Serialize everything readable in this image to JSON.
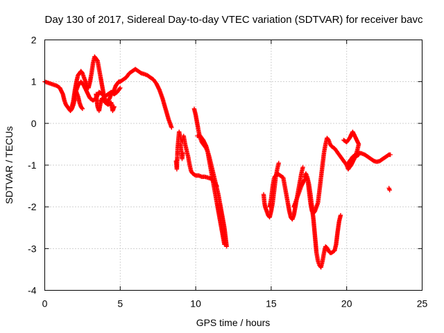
{
  "chart_data": {
    "type": "scatter",
    "title": "Day 130 of 2017, Sidereal Day-to-day VTEC variation (SDTVAR) for receiver bavc",
    "xlabel": "GPS time / hours",
    "ylabel": "SDTVAR / TECUs",
    "xlim": [
      0,
      25
    ],
    "ylim": [
      -4,
      2
    ],
    "x_ticks": [
      "0",
      "5",
      "10",
      "15",
      "20",
      "25"
    ],
    "y_ticks": [
      "-4",
      "-3",
      "-2",
      "-1",
      "0",
      "1",
      "2"
    ],
    "grid": true,
    "marker": "+",
    "color": "#ff0000",
    "segments": [
      [
        [
          0.0,
          1.0
        ],
        [
          0.4,
          0.95
        ],
        [
          0.8,
          0.9
        ],
        [
          1.0,
          0.85
        ],
        [
          1.2,
          0.7
        ],
        [
          1.3,
          0.55
        ],
        [
          1.4,
          0.45
        ],
        [
          1.5,
          0.4
        ],
        [
          1.6,
          0.35
        ],
        [
          1.7,
          0.3
        ],
        [
          1.8,
          0.35
        ],
        [
          1.9,
          0.45
        ],
        [
          2.0,
          0.6
        ],
        [
          2.1,
          0.75
        ],
        [
          2.2,
          0.65
        ],
        [
          2.3,
          0.5
        ],
        [
          2.4,
          0.4
        ],
        [
          2.5,
          0.35
        ]
      ],
      [
        [
          1.8,
          0.4
        ],
        [
          1.9,
          0.55
        ],
        [
          2.0,
          0.8
        ],
        [
          2.1,
          1.0
        ],
        [
          2.2,
          1.15
        ],
        [
          2.3,
          1.2
        ],
        [
          2.4,
          1.25
        ],
        [
          2.5,
          1.2
        ],
        [
          2.6,
          1.1
        ],
        [
          2.7,
          1.0
        ],
        [
          2.8,
          0.9
        ],
        [
          2.9,
          0.85
        ],
        [
          3.0,
          1.0
        ],
        [
          3.1,
          1.2
        ],
        [
          3.2,
          1.45
        ],
        [
          3.3,
          1.6
        ],
        [
          3.4,
          1.55
        ],
        [
          3.5,
          1.5
        ],
        [
          3.6,
          1.3
        ],
        [
          3.7,
          1.1
        ],
        [
          3.8,
          0.9
        ],
        [
          3.9,
          0.7
        ],
        [
          4.0,
          0.55
        ],
        [
          4.1,
          0.5
        ],
        [
          4.2,
          0.55
        ],
        [
          4.3,
          0.6
        ],
        [
          4.4,
          0.7
        ],
        [
          4.5,
          0.75
        ],
        [
          4.6,
          0.8
        ],
        [
          4.7,
          0.9
        ],
        [
          4.8,
          0.95
        ],
        [
          4.9,
          1.0
        ],
        [
          5.0,
          1.0
        ],
        [
          5.2,
          1.05
        ],
        [
          5.4,
          1.1
        ],
        [
          5.6,
          1.2
        ],
        [
          5.8,
          1.25
        ],
        [
          6.0,
          1.3
        ],
        [
          6.2,
          1.25
        ],
        [
          6.4,
          1.2
        ],
        [
          6.6,
          1.18
        ],
        [
          6.8,
          1.15
        ],
        [
          7.0,
          1.1
        ],
        [
          7.2,
          1.05
        ],
        [
          7.4,
          0.95
        ],
        [
          7.6,
          0.8
        ],
        [
          7.8,
          0.6
        ],
        [
          8.0,
          0.35
        ],
        [
          8.2,
          0.1
        ],
        [
          8.4,
          -0.1
        ]
      ],
      [
        [
          2.0,
          0.7
        ],
        [
          2.2,
          0.9
        ],
        [
          2.4,
          1.0
        ],
        [
          2.6,
          0.9
        ],
        [
          2.8,
          0.75
        ],
        [
          3.0,
          0.6
        ],
        [
          3.2,
          0.55
        ],
        [
          3.4,
          0.6
        ],
        [
          3.6,
          0.75
        ],
        [
          3.8,
          0.7
        ],
        [
          4.0,
          0.65
        ],
        [
          4.2,
          0.7
        ],
        [
          4.4,
          0.75
        ],
        [
          4.6,
          0.7
        ],
        [
          4.8,
          0.75
        ],
        [
          5.0,
          0.85
        ]
      ],
      [
        [
          3.4,
          0.7
        ],
        [
          3.5,
          0.4
        ],
        [
          3.6,
          0.3
        ],
        [
          3.7,
          0.5
        ],
        [
          3.8,
          0.6
        ],
        [
          4.0,
          0.5
        ],
        [
          4.2,
          0.45
        ],
        [
          4.4,
          0.5
        ],
        [
          4.5,
          0.3
        ],
        [
          4.6,
          0.4
        ]
      ],
      [
        [
          8.7,
          -0.9
        ],
        [
          8.75,
          -1.1
        ],
        [
          8.8,
          -0.6
        ],
        [
          8.85,
          -0.4
        ],
        [
          8.9,
          -0.2
        ],
        [
          9.0,
          -0.35
        ],
        [
          9.1,
          -0.45
        ],
        [
          9.2,
          -0.3
        ],
        [
          9.3,
          -0.5
        ],
        [
          9.4,
          -0.65
        ],
        [
          9.5,
          -0.8
        ],
        [
          9.6,
          -1.0
        ],
        [
          9.7,
          -1.15
        ],
        [
          9.8,
          -1.2
        ],
        [
          10.0,
          -1.25
        ],
        [
          10.2,
          -1.25
        ],
        [
          10.4,
          -1.28
        ],
        [
          10.6,
          -1.28
        ],
        [
          10.8,
          -1.3
        ],
        [
          11.0,
          -1.32
        ],
        [
          11.2,
          -1.4
        ],
        [
          11.4,
          -1.5
        ]
      ],
      [
        [
          9.0,
          -0.5
        ],
        [
          9.05,
          -0.7
        ],
        [
          9.1,
          -0.85
        ],
        [
          9.15,
          -0.7
        ]
      ],
      [
        [
          9.9,
          0.35
        ],
        [
          10.0,
          0.2
        ],
        [
          10.1,
          0.0
        ],
        [
          10.2,
          -0.2
        ],
        [
          10.3,
          -0.35
        ],
        [
          10.4,
          -0.45
        ],
        [
          10.5,
          -0.5
        ],
        [
          10.6,
          -0.55
        ],
        [
          10.7,
          -0.6
        ],
        [
          10.8,
          -0.7
        ],
        [
          10.9,
          -0.9
        ],
        [
          11.0,
          -1.1
        ],
        [
          11.1,
          -1.3
        ],
        [
          11.2,
          -1.5
        ],
        [
          11.3,
          -1.7
        ],
        [
          11.4,
          -1.9
        ],
        [
          11.5,
          -2.1
        ],
        [
          11.6,
          -2.3
        ],
        [
          11.7,
          -2.5
        ],
        [
          11.8,
          -2.7
        ],
        [
          11.9,
          -2.9
        ]
      ],
      [
        [
          10.1,
          -0.3
        ],
        [
          10.3,
          -0.3
        ],
        [
          10.5,
          -0.4
        ],
        [
          10.7,
          -0.55
        ],
        [
          10.9,
          -0.8
        ],
        [
          11.1,
          -1.1
        ],
        [
          11.3,
          -1.4
        ],
        [
          11.5,
          -1.7
        ],
        [
          11.7,
          -2.1
        ],
        [
          11.9,
          -2.5
        ],
        [
          12.0,
          -2.8
        ],
        [
          12.05,
          -2.95
        ]
      ],
      [
        [
          14.5,
          -1.7
        ],
        [
          14.55,
          -1.9
        ],
        [
          14.6,
          -2.0
        ],
        [
          14.7,
          -2.1
        ],
        [
          14.8,
          -2.2
        ],
        [
          14.9,
          -2.25
        ],
        [
          15.0,
          -2.1
        ],
        [
          15.1,
          -1.9
        ],
        [
          15.2,
          -1.6
        ],
        [
          15.3,
          -1.3
        ],
        [
          15.4,
          -1.1
        ],
        [
          15.5,
          -0.95
        ]
      ],
      [
        [
          14.9,
          -2.0
        ],
        [
          15.0,
          -1.8
        ],
        [
          15.1,
          -1.5
        ],
        [
          15.2,
          -1.3
        ],
        [
          15.4,
          -1.2
        ],
        [
          15.6,
          -1.25
        ],
        [
          15.8,
          -1.3
        ],
        [
          15.9,
          -1.5
        ],
        [
          16.0,
          -1.7
        ],
        [
          16.1,
          -1.9
        ],
        [
          16.2,
          -2.1
        ],
        [
          16.3,
          -2.25
        ],
        [
          16.4,
          -2.3
        ],
        [
          16.5,
          -2.2
        ],
        [
          16.6,
          -2.0
        ],
        [
          16.7,
          -1.8
        ],
        [
          16.8,
          -1.6
        ],
        [
          16.9,
          -1.4
        ],
        [
          17.0,
          -1.2
        ],
        [
          17.1,
          -1.05
        ]
      ],
      [
        [
          16.5,
          -2.0
        ],
        [
          16.6,
          -1.9
        ],
        [
          16.8,
          -1.7
        ],
        [
          17.0,
          -1.5
        ],
        [
          17.2,
          -1.35
        ],
        [
          17.4,
          -1.3
        ],
        [
          17.5,
          -1.45
        ],
        [
          17.6,
          -1.7
        ],
        [
          17.7,
          -2.0
        ],
        [
          17.8,
          -2.3
        ],
        [
          17.9,
          -2.7
        ],
        [
          18.0,
          -3.1
        ],
        [
          18.1,
          -3.3
        ],
        [
          18.2,
          -3.4
        ],
        [
          18.3,
          -3.45
        ],
        [
          18.4,
          -3.3
        ],
        [
          18.5,
          -3.1
        ],
        [
          18.6,
          -2.95
        ],
        [
          18.7,
          -2.98
        ],
        [
          18.8,
          -3.05
        ],
        [
          18.9,
          -3.1
        ],
        [
          19.0,
          -3.1
        ],
        [
          19.2,
          -3.05
        ],
        [
          19.3,
          -2.9
        ],
        [
          19.4,
          -2.6
        ],
        [
          19.5,
          -2.35
        ],
        [
          19.6,
          -2.2
        ]
      ],
      [
        [
          17.2,
          -1.3
        ],
        [
          17.3,
          -1.2
        ],
        [
          17.4,
          -1.3
        ],
        [
          17.5,
          -1.6
        ],
        [
          17.6,
          -1.9
        ],
        [
          17.7,
          -2.1
        ],
        [
          17.8,
          -2.15
        ],
        [
          17.9,
          -2.1
        ],
        [
          18.0,
          -2.0
        ],
        [
          18.1,
          -1.9
        ],
        [
          18.2,
          -1.6
        ],
        [
          18.3,
          -1.3
        ],
        [
          18.4,
          -1.0
        ],
        [
          18.5,
          -0.7
        ],
        [
          18.6,
          -0.5
        ],
        [
          18.7,
          -0.35
        ],
        [
          18.8,
          -0.4
        ],
        [
          18.9,
          -0.5
        ],
        [
          19.0,
          -0.55
        ],
        [
          19.2,
          -0.6
        ],
        [
          19.4,
          -0.7
        ],
        [
          19.6,
          -0.8
        ],
        [
          19.8,
          -0.9
        ],
        [
          20.0,
          -1.0
        ],
        [
          20.2,
          -0.9
        ],
        [
          20.4,
          -0.8
        ],
        [
          20.6,
          -0.75
        ],
        [
          20.8,
          -0.7
        ],
        [
          21.0,
          -0.72
        ],
        [
          21.2,
          -0.75
        ],
        [
          21.4,
          -0.8
        ],
        [
          21.6,
          -0.85
        ],
        [
          21.8,
          -0.9
        ],
        [
          22.0,
          -0.92
        ],
        [
          22.2,
          -0.9
        ],
        [
          22.4,
          -0.85
        ],
        [
          22.6,
          -0.8
        ],
        [
          22.8,
          -0.75
        ],
        [
          22.9,
          -0.75
        ]
      ],
      [
        [
          19.8,
          -0.4
        ],
        [
          20.0,
          -0.45
        ],
        [
          20.2,
          -0.35
        ],
        [
          20.4,
          -0.2
        ],
        [
          20.6,
          -0.35
        ],
        [
          20.8,
          -0.5
        ],
        [
          20.7,
          -0.65
        ],
        [
          20.5,
          -0.85
        ],
        [
          20.3,
          -1.0
        ],
        [
          20.1,
          -1.1
        ],
        [
          20.0,
          -1.0
        ],
        [
          20.2,
          -0.95
        ],
        [
          20.4,
          -0.85
        ],
        [
          20.6,
          -0.8
        ],
        [
          20.8,
          -0.75
        ]
      ],
      [
        [
          22.8,
          -1.55
        ],
        [
          22.85,
          -1.6
        ]
      ]
    ]
  }
}
